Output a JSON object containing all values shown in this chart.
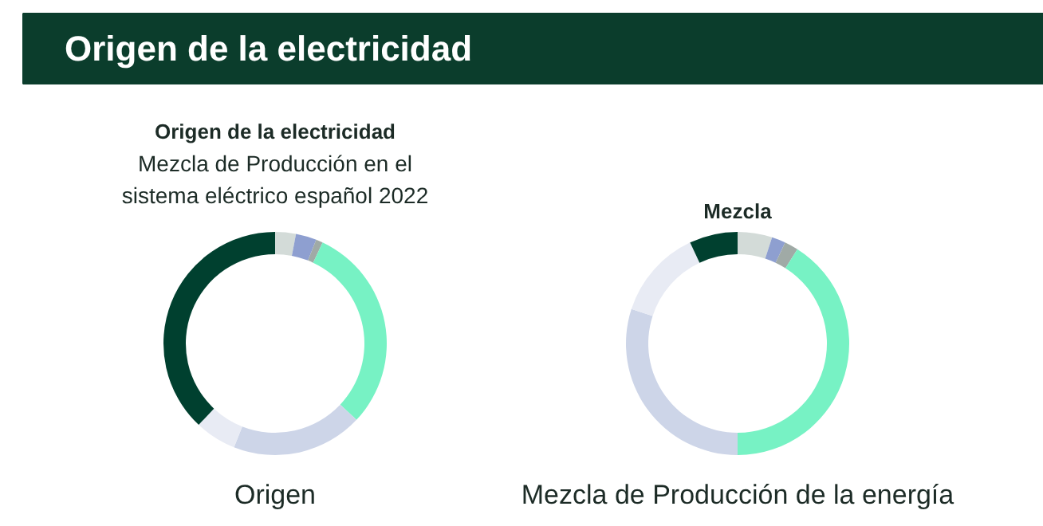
{
  "chart_data": [
    {
      "type": "other",
      "title": "Origen de la electricidad"
    },
    {
      "type": "donut",
      "title": "Origen de la electricidad",
      "subtitle": "Mezcla de Producción en el sistema eléctrico español 2022",
      "annotations": [
        "Origen"
      ],
      "categories": [
        null,
        null,
        null,
        null,
        null,
        null,
        null
      ],
      "values": [
        3,
        3,
        1,
        30,
        19,
        6,
        38
      ],
      "colors": [
        "#d3dbd8",
        "#8e9fd0",
        "#a0aaa6",
        "#77f2c4",
        "#cdd5e8",
        "#e8ebf4",
        "#00402f"
      ]
    },
    {
      "type": "donut",
      "title": "Mezcla",
      "annotations": [
        "Mezcla de Producción de la energía"
      ],
      "categories": [
        null,
        null,
        null,
        null,
        null,
        null,
        null
      ],
      "values": [
        5,
        2,
        2,
        41,
        30,
        13,
        7
      ],
      "colors": [
        "#d3dbd8",
        "#8e9fd0",
        "#a0aaa6",
        "#77f2c4",
        "#cdd5e8",
        "#e8ebf4",
        "#00402f"
      ]
    }
  ]
}
